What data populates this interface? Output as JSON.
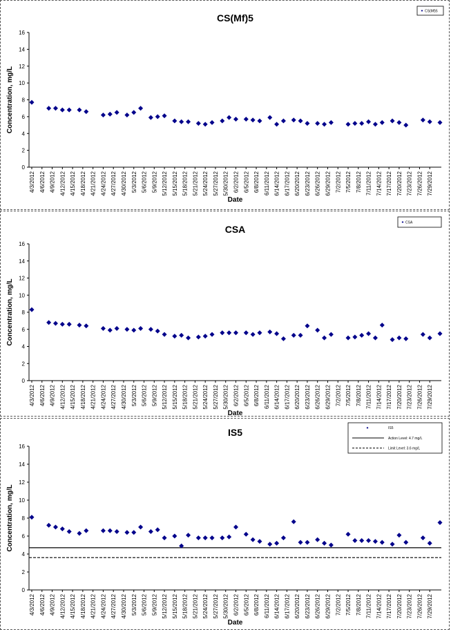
{
  "dates": [
    "4/3/2012",
    "4/6/2012",
    "4/9/2012",
    "4/12/2012",
    "4/15/2012",
    "4/18/2012",
    "4/21/2012",
    "4/24/2012",
    "4/27/2012",
    "4/30/2012",
    "5/3/2012",
    "5/6/2012",
    "5/9/2012",
    "5/12/2012",
    "5/15/2012",
    "5/18/2012",
    "5/21/2012",
    "5/24/2012",
    "5/27/2012",
    "5/30/2012",
    "6/2/2012",
    "6/5/2012",
    "6/8/2012",
    "6/11/2012",
    "6/14/2012",
    "6/17/2012",
    "6/20/2012",
    "6/23/2012",
    "6/26/2012",
    "6/29/2012",
    "7/2/2012",
    "7/5/2012",
    "7/8/2012",
    "7/11/2012",
    "7/14/2012",
    "7/17/2012",
    "7/20/2012",
    "7/23/2012",
    "7/26/2012",
    "7/29/2012"
  ],
  "colors": {
    "series": "#00008B",
    "frame": "#555555",
    "line": "#000000"
  },
  "chart_data": [
    {
      "type": "scatter",
      "title": "CS(Mf)5",
      "xlabel": "Date",
      "ylabel": "Concentration, mg/L",
      "ylim": [
        0,
        16
      ],
      "yticks": [
        "0",
        "2",
        "4",
        "6",
        "8",
        "10",
        "12",
        "14",
        "16"
      ],
      "grid": false,
      "legend_position": "top-right",
      "legend": [
        {
          "label": "CS(Mf)5",
          "marker": "diamond"
        }
      ],
      "series": [
        {
          "name": "CS(Mf)5",
          "x": [
            "4/3/2012",
            "4/8/2012",
            "4/10/2012",
            "4/12/2012",
            "4/14/2012",
            "4/17/2012",
            "4/19/2012",
            "4/24/2012",
            "4/26/2012",
            "4/28/2012",
            "5/1/2012",
            "5/3/2012",
            "5/5/2012",
            "5/8/2012",
            "5/10/2012",
            "5/12/2012",
            "5/15/2012",
            "5/17/2012",
            "5/19/2012",
            "5/22/2012",
            "5/24/2012",
            "5/26/2012",
            "5/29/2012",
            "5/31/2012",
            "6/2/2012",
            "6/5/2012",
            "6/7/2012",
            "6/9/2012",
            "6/12/2012",
            "6/14/2012",
            "6/16/2012",
            "6/19/2012",
            "6/21/2012",
            "6/23/2012",
            "6/26/2012",
            "6/28/2012",
            "6/30/2012",
            "7/5/2012",
            "7/7/2012",
            "7/9/2012",
            "7/11/2012",
            "7/13/2012",
            "7/15/2012",
            "7/18/2012",
            "7/20/2012",
            "7/22/2012",
            "7/27/2012",
            "7/29/2012",
            "8/1/2012"
          ],
          "values": [
            7.7,
            7.0,
            7.0,
            6.8,
            6.8,
            6.8,
            6.6,
            6.2,
            6.3,
            6.5,
            6.2,
            6.5,
            7.0,
            5.9,
            6.0,
            6.1,
            5.5,
            5.4,
            5.4,
            5.2,
            5.1,
            5.3,
            5.5,
            5.9,
            5.7,
            5.7,
            5.6,
            5.5,
            5.9,
            5.1,
            5.5,
            5.6,
            5.5,
            5.2,
            5.2,
            5.1,
            5.3,
            5.1,
            5.2,
            5.2,
            5.4,
            5.1,
            5.3,
            5.5,
            5.3,
            5.0,
            5.6,
            5.4,
            5.3
          ]
        }
      ]
    },
    {
      "type": "scatter",
      "title": "CSA",
      "xlabel": "Date",
      "ylabel": "Concentration, mg/L",
      "ylim": [
        0,
        16
      ],
      "yticks": [
        "0",
        "2",
        "4",
        "6",
        "8",
        "10",
        "12",
        "14",
        "16"
      ],
      "grid": false,
      "legend_position": "top-right",
      "legend": [
        {
          "label": "CSA",
          "marker": "diamond"
        }
      ],
      "series": [
        {
          "name": "CSA",
          "x": [
            "4/3/2012",
            "4/8/2012",
            "4/10/2012",
            "4/12/2012",
            "4/14/2012",
            "4/17/2012",
            "4/19/2012",
            "4/24/2012",
            "4/26/2012",
            "4/28/2012",
            "5/1/2012",
            "5/3/2012",
            "5/5/2012",
            "5/8/2012",
            "5/10/2012",
            "5/12/2012",
            "5/15/2012",
            "5/17/2012",
            "5/19/2012",
            "5/22/2012",
            "5/24/2012",
            "5/26/2012",
            "5/29/2012",
            "5/31/2012",
            "6/2/2012",
            "6/5/2012",
            "6/7/2012",
            "6/9/2012",
            "6/12/2012",
            "6/14/2012",
            "6/16/2012",
            "6/19/2012",
            "6/21/2012",
            "6/23/2012",
            "6/26/2012",
            "6/28/2012",
            "6/30/2012",
            "7/5/2012",
            "7/7/2012",
            "7/9/2012",
            "7/11/2012",
            "7/13/2012",
            "7/15/2012",
            "7/18/2012",
            "7/20/2012",
            "7/22/2012",
            "7/27/2012",
            "7/29/2012",
            "8/1/2012"
          ],
          "values": [
            8.3,
            6.8,
            6.7,
            6.6,
            6.6,
            6.5,
            6.4,
            6.1,
            5.9,
            6.1,
            6.0,
            5.9,
            6.1,
            6.0,
            5.8,
            5.4,
            5.2,
            5.3,
            5.0,
            5.1,
            5.2,
            5.4,
            5.6,
            5.6,
            5.6,
            5.6,
            5.4,
            5.6,
            5.7,
            5.5,
            4.9,
            5.3,
            5.3,
            6.4,
            5.9,
            5.0,
            5.4,
            5.0,
            5.1,
            5.3,
            5.5,
            5.0,
            6.5,
            4.8,
            5.0,
            4.9,
            5.4,
            5.0,
            5.5
          ]
        }
      ]
    },
    {
      "type": "scatter",
      "title": "IS5",
      "xlabel": "Date",
      "ylabel": "Concentration, mg/L",
      "ylim": [
        0,
        16
      ],
      "yticks": [
        "0",
        "2",
        "4",
        "6",
        "8",
        "10",
        "12",
        "14",
        "16"
      ],
      "grid": false,
      "legend_position": "top-right",
      "legend": [
        {
          "label": "IS5",
          "marker": "diamond"
        },
        {
          "label": "Action Level: 4.7 mg/L",
          "marker": "solid-line"
        },
        {
          "label": "Limit Level: 3.6 mg/L",
          "marker": "dashed-line"
        }
      ],
      "reference_lines": [
        {
          "value": 4.7,
          "style": "solid"
        },
        {
          "value": 3.6,
          "style": "dashed"
        }
      ],
      "series": [
        {
          "name": "IS5",
          "x": [
            "4/3/2012",
            "4/8/2012",
            "4/10/2012",
            "4/12/2012",
            "4/14/2012",
            "4/17/2012",
            "4/19/2012",
            "4/24/2012",
            "4/26/2012",
            "4/28/2012",
            "5/1/2012",
            "5/3/2012",
            "5/5/2012",
            "5/8/2012",
            "5/10/2012",
            "5/12/2012",
            "5/15/2012",
            "5/17/2012",
            "5/19/2012",
            "5/22/2012",
            "5/24/2012",
            "5/26/2012",
            "5/29/2012",
            "5/31/2012",
            "6/2/2012",
            "6/5/2012",
            "6/7/2012",
            "6/9/2012",
            "6/12/2012",
            "6/14/2012",
            "6/16/2012",
            "6/19/2012",
            "6/21/2012",
            "6/23/2012",
            "6/26/2012",
            "6/28/2012",
            "6/30/2012",
            "7/5/2012",
            "7/7/2012",
            "7/9/2012",
            "7/11/2012",
            "7/13/2012",
            "7/15/2012",
            "7/18/2012",
            "7/20/2012",
            "7/22/2012",
            "7/27/2012",
            "7/29/2012",
            "8/1/2012"
          ],
          "values": [
            8.1,
            7.2,
            7.0,
            6.8,
            6.5,
            6.3,
            6.6,
            6.6,
            6.6,
            6.5,
            6.4,
            6.4,
            7.0,
            6.5,
            6.7,
            5.8,
            6.0,
            4.9,
            6.1,
            5.8,
            5.8,
            5.8,
            5.8,
            5.9,
            7.0,
            6.2,
            5.6,
            5.4,
            5.1,
            5.2,
            5.8,
            7.6,
            5.3,
            5.3,
            5.6,
            5.2,
            5.0,
            6.2,
            5.5,
            5.5,
            5.5,
            5.4,
            5.3,
            5.1,
            6.1,
            5.3,
            5.8,
            5.2,
            7.5
          ]
        }
      ]
    }
  ]
}
